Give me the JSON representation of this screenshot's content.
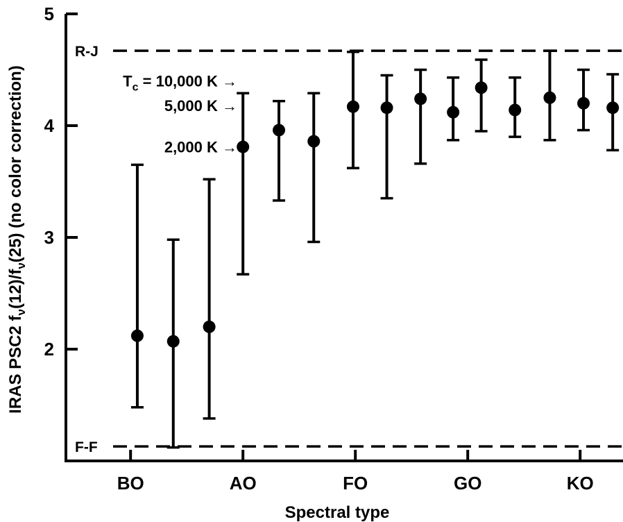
{
  "chart_data": {
    "type": "scatter",
    "xlabel": "Spectral type",
    "ylabel": "IRAS PSC2 f",
    "ylabel_parts": [
      "IRAS PSC2 f",
      "ν",
      "(12)/f",
      "ν",
      "(25) (no color correction)"
    ],
    "x_categories": [
      "BO",
      "AO",
      "FO",
      "GO",
      "KO"
    ],
    "y_ticks": [
      "2",
      "3",
      "4",
      "5"
    ],
    "ylim": [
      1.05,
      5.0
    ],
    "grid": false,
    "legend": "none",
    "series": [
      {
        "x": [
          "B1",
          "B5",
          "B8",
          "A0",
          "A3",
          "A6",
          "F0",
          "F3",
          "F6",
          "G0",
          "G3",
          "G6",
          "K0",
          "K3",
          "K6"
        ],
        "y": [
          2.12,
          2.07,
          2.2,
          3.81,
          3.96,
          3.86,
          4.17,
          4.16,
          4.24,
          4.12,
          4.34,
          4.14,
          4.25,
          4.2,
          4.16
        ],
        "y_low": [
          1.48,
          1.12,
          1.38,
          2.67,
          3.33,
          2.96,
          3.62,
          3.35,
          3.66,
          3.87,
          3.95,
          3.9,
          3.87,
          3.96,
          3.78
        ],
        "y_high": [
          3.65,
          2.98,
          3.52,
          4.29,
          4.22,
          4.29,
          4.66,
          4.45,
          4.5,
          4.43,
          4.59,
          4.43,
          4.67,
          4.5,
          4.46
        ]
      }
    ],
    "reference_lines": [
      {
        "label": "R-J",
        "y": 4.67,
        "style": "dashed"
      },
      {
        "label": "F-F",
        "y": 1.13,
        "style": "dashed"
      }
    ],
    "annotations": [
      {
        "prefix": "T",
        "subscript": "c",
        "text": " = 10,000 K →",
        "y": 4.4
      },
      {
        "prefix": "",
        "subscript": "",
        "text": "5,000 K →",
        "y": 4.18
      },
      {
        "prefix": "",
        "subscript": "",
        "text": "2,000 K →",
        "y": 3.81
      }
    ],
    "x_axis": {
      "min": 0,
      "max": 42,
      "category_positions": [
        1,
        11,
        21,
        31,
        41
      ]
    },
    "series_x_positions": [
      1.6,
      4.8,
      8.0,
      11.0,
      14.2,
      17.3,
      20.8,
      23.8,
      26.8,
      29.7,
      32.2,
      35.2,
      38.3,
      41.3,
      43.9
    ]
  }
}
